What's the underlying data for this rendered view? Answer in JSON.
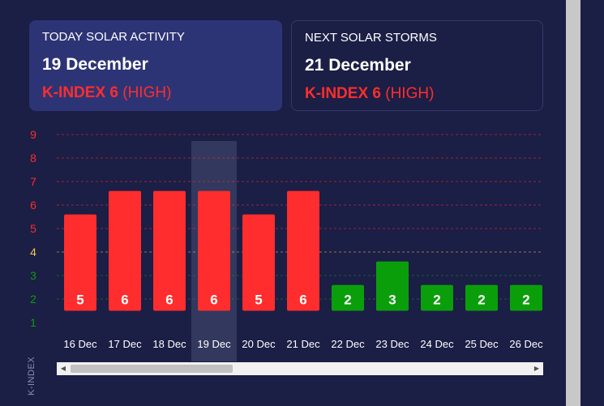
{
  "today": {
    "label": "TODAY SOLAR ACTIVITY",
    "date": "19 December",
    "kindex_label": "K-INDEX 6",
    "kindex_level": "(HIGH)"
  },
  "next_storm": {
    "label": "NEXT SOLAR STORMS",
    "date": "21 December",
    "kindex_label": "K-INDEX 6",
    "kindex_level": "(HIGH)"
  },
  "colors": {
    "background": "#1b1e45",
    "high": "#ff2d2d",
    "low": "#0b9e0b",
    "moderate": "#f2c94c",
    "today_highlight": "#33385e"
  },
  "chart_data": {
    "type": "bar",
    "categories": [
      "16 Dec",
      "17 Dec",
      "18 Dec",
      "19 Dec",
      "20 Dec",
      "21 Dec",
      "22 Dec",
      "23 Dec",
      "24 Dec",
      "25 Dec",
      "26 Dec"
    ],
    "values": [
      5,
      6,
      6,
      6,
      5,
      6,
      2,
      3,
      2,
      2,
      2
    ],
    "data_labels": [
      "5",
      "6",
      "6",
      "6",
      "5",
      "6",
      "2",
      "3",
      "2",
      "2",
      "2"
    ],
    "highlighted_category": "19 Dec",
    "ylabel": "K-INDEX",
    "yticks": [
      "1",
      "2",
      "3",
      "4",
      "5",
      "6",
      "7",
      "8",
      "9"
    ],
    "ylim": [
      1,
      9
    ],
    "grid": true
  }
}
